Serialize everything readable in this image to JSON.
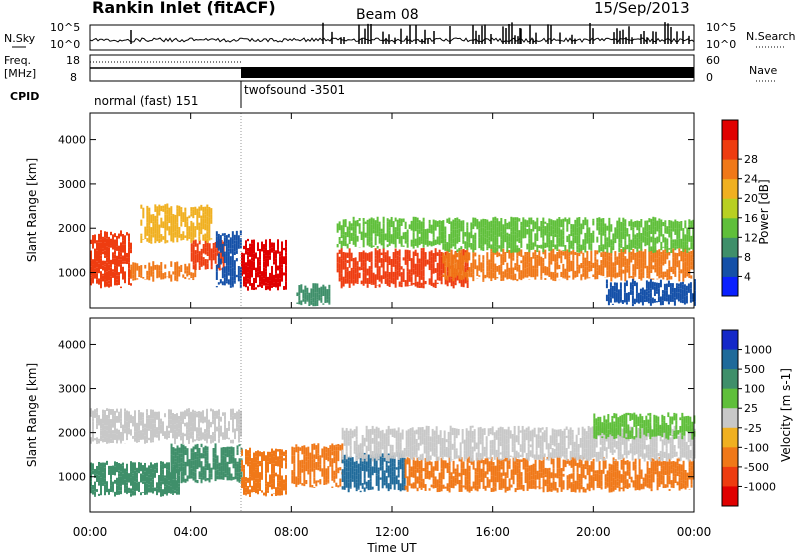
{
  "header": {
    "title": "Rankin Inlet (fitACF)",
    "beam": "Beam 08",
    "date": "15/Sep/2013"
  },
  "noise_panel": {
    "left_label": "N.Sky",
    "right_label": "N.Search",
    "left_ticks": [
      "10^5",
      "10^0"
    ],
    "right_ticks": [
      "10^5",
      "10^0"
    ]
  },
  "freq_panel": {
    "label": "Freq.",
    "unit": "[MHz]",
    "left_ticks": [
      "18",
      "8"
    ],
    "right_label": "Nave",
    "right_ticks": [
      "60",
      "0"
    ]
  },
  "cpid": {
    "label": "CPID",
    "segments": [
      {
        "name": "normal (fast) 151",
        "start_hour": 0,
        "end_hour": 6
      },
      {
        "name": "twofsound -3501",
        "start_hour": 6,
        "end_hour": 24
      }
    ]
  },
  "chart_data": [
    {
      "type": "heatmap",
      "name": "power",
      "ylabel": "Slant Range [km]",
      "yticks": [
        "1000",
        "2000",
        "3000",
        "4000"
      ],
      "ylim": [
        200,
        4600
      ],
      "xlim": [
        0,
        24
      ],
      "colorbar": {
        "label": "Power [dB]",
        "ticks": [
          "4",
          "8",
          "12",
          "16",
          "20",
          "24",
          "28"
        ],
        "colors": [
          "#0a20ff",
          "#1450a8",
          "#3f8f6a",
          "#5fbf3a",
          "#b8d022",
          "#f0b020",
          "#f07818",
          "#ee3c10",
          "#e00000"
        ]
      },
      "bands": [
        {
          "start": 0.0,
          "end": 1.6,
          "r0": 700,
          "r1": 1900,
          "color": "#ee3c10"
        },
        {
          "start": 1.6,
          "end": 4.2,
          "r0": 850,
          "r1": 1200,
          "color": "#f07818"
        },
        {
          "start": 4.0,
          "end": 5.3,
          "r0": 1100,
          "r1": 1700,
          "color": "#ee3c10"
        },
        {
          "start": 2.0,
          "end": 4.8,
          "r0": 1700,
          "r1": 2500,
          "color": "#f0b020"
        },
        {
          "start": 6.0,
          "end": 7.8,
          "r0": 650,
          "r1": 1700,
          "color": "#e00000"
        },
        {
          "start": 5.0,
          "end": 6.0,
          "r0": 700,
          "r1": 1900,
          "color": "#1450a8"
        },
        {
          "start": 8.2,
          "end": 9.5,
          "r0": 300,
          "r1": 700,
          "color": "#3f8f6a"
        },
        {
          "start": 9.8,
          "end": 15.0,
          "r0": 700,
          "r1": 1500,
          "color": "#ee3c10"
        },
        {
          "start": 9.8,
          "end": 14.0,
          "r0": 1600,
          "r1": 2200,
          "color": "#5fbf3a"
        },
        {
          "start": 14.0,
          "end": 24.0,
          "r0": 850,
          "r1": 1500,
          "color": "#f07818"
        },
        {
          "start": 14.0,
          "end": 24.0,
          "r0": 1500,
          "r1": 2200,
          "color": "#5fbf3a"
        },
        {
          "start": 20.5,
          "end": 24.0,
          "r0": 300,
          "r1": 800,
          "color": "#1450a8"
        }
      ]
    },
    {
      "type": "heatmap",
      "name": "velocity",
      "ylabel": "Slant Range [km]",
      "yticks": [
        "1000",
        "2000",
        "3000",
        "4000"
      ],
      "ylim": [
        200,
        4600
      ],
      "xlim": [
        0,
        24
      ],
      "xticks": [
        "00:00",
        "04:00",
        "08:00",
        "12:00",
        "16:00",
        "20:00",
        "00:00"
      ],
      "xlabel": "Time UT",
      "colorbar": {
        "label": "Velocity [m s-1]",
        "ticks": [
          "1000",
          "500",
          "100",
          "25",
          "-25",
          "-100",
          "-500",
          "-1000"
        ],
        "colors": [
          "#1428c8",
          "#1f6a9a",
          "#3f8f6a",
          "#5fbf3a",
          "#c8c8c8",
          "#f0b020",
          "#f07818",
          "#ee3c10",
          "#e00000"
        ]
      },
      "bands": [
        {
          "start": 0.0,
          "end": 6.0,
          "r0": 1800,
          "r1": 2500,
          "color": "#c8c8c8"
        },
        {
          "start": 0.0,
          "end": 3.5,
          "r0": 600,
          "r1": 1300,
          "color": "#3f8f6a"
        },
        {
          "start": 3.2,
          "end": 6.0,
          "r0": 900,
          "r1": 1700,
          "color": "#3f8f6a"
        },
        {
          "start": 6.0,
          "end": 7.8,
          "r0": 600,
          "r1": 1600,
          "color": "#f07818"
        },
        {
          "start": 8.0,
          "end": 10.0,
          "r0": 800,
          "r1": 1700,
          "color": "#f07818"
        },
        {
          "start": 10.0,
          "end": 12.5,
          "r0": 700,
          "r1": 1500,
          "color": "#1f6a9a"
        },
        {
          "start": 12.5,
          "end": 24.0,
          "r0": 700,
          "r1": 1400,
          "color": "#f07818"
        },
        {
          "start": 10.0,
          "end": 24.0,
          "r0": 1400,
          "r1": 2100,
          "color": "#c8c8c8"
        },
        {
          "start": 20.0,
          "end": 24.0,
          "r0": 1900,
          "r1": 2400,
          "color": "#5fbf3a"
        }
      ]
    }
  ]
}
